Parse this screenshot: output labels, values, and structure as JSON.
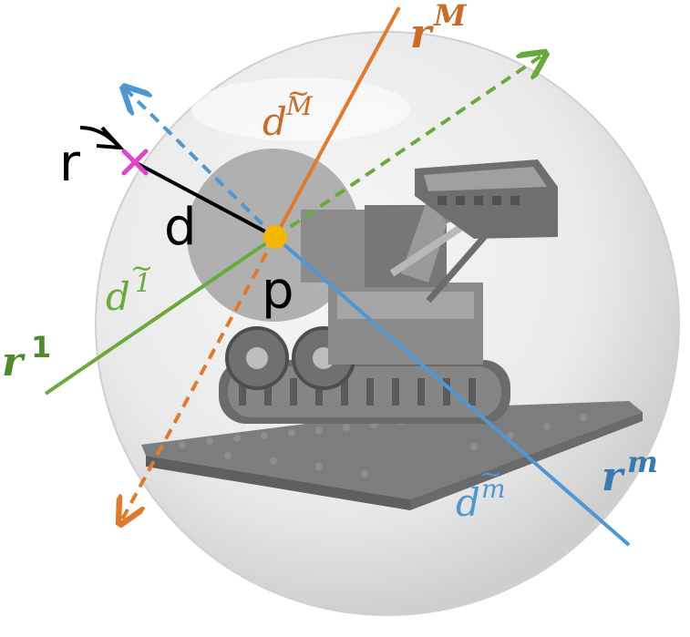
{
  "labels": {
    "r": "r",
    "d": "d",
    "p": "p",
    "rM_base": "r",
    "rM_sup": "M",
    "r1_base": "r",
    "r1_sup": "1",
    "rm_base": "r",
    "rm_sup": "m",
    "dM_base": "d",
    "dM_sup": "M",
    "d1_base": "d",
    "d1_sup": "1",
    "dm_base": "d",
    "dm_sup": "m"
  },
  "colors": {
    "orange": "#e07a2e",
    "green": "#6aaa3c",
    "blue": "#4f97d2",
    "black": "#000000",
    "magenta": "#e046c8",
    "point": "#f5b800",
    "sphere": "#e6e6e6",
    "inner_disk": "#9a9a9a"
  },
  "icons": {
    "object": "lego-excavator-icon",
    "marker": "cross-marker-icon"
  }
}
